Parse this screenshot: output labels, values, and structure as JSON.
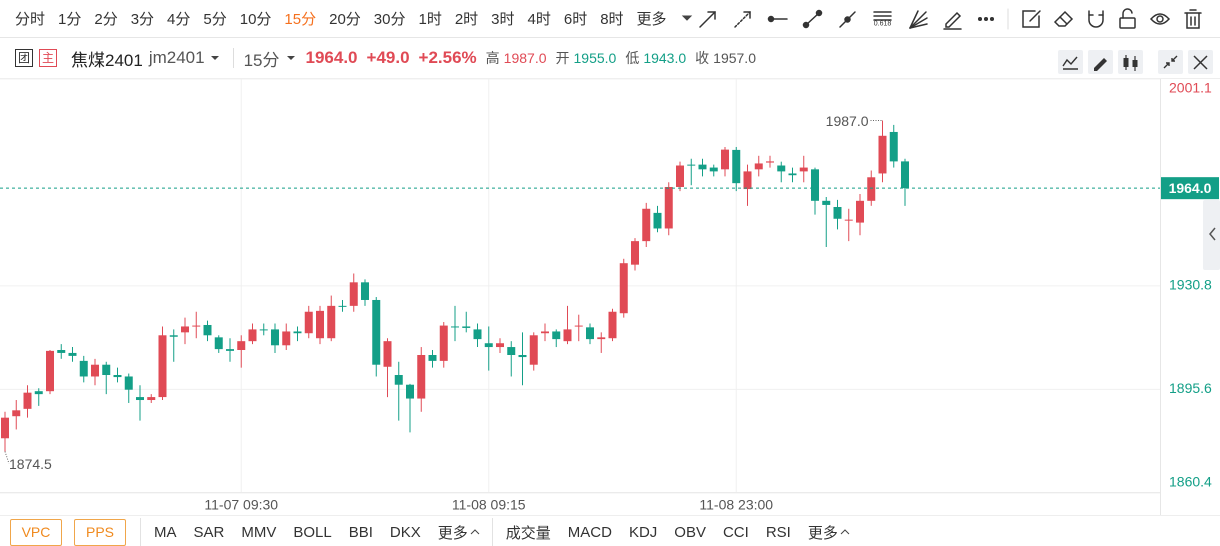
{
  "toolbar": {
    "periods": [
      "分时",
      "1分",
      "2分",
      "3分",
      "4分",
      "5分",
      "10分",
      "15分",
      "20分",
      "30分",
      "1时",
      "2时",
      "3时",
      "4时",
      "6时",
      "8时"
    ],
    "more": "更多",
    "fib_label": "0.618"
  },
  "quote": {
    "badges": [
      "团",
      "主"
    ],
    "name": "焦煤2401",
    "code": "jm2401",
    "period": "15分",
    "price": "1964.0",
    "change": "+49.0",
    "change_pct": "+2.56%",
    "high_label": "高",
    "high": "1987.0",
    "open_label": "开",
    "open": "1955.0",
    "low_label": "低",
    "low": "1943.0",
    "close_label": "收",
    "close": "1957.0"
  },
  "chart_data": {
    "type": "candlestick",
    "categories": [
      null,
      null,
      null,
      null,
      null,
      null,
      null,
      null,
      null,
      null,
      null,
      null,
      null,
      null,
      null,
      null,
      null,
      null,
      null,
      null,
      null,
      "11-07 09:30",
      null,
      null,
      null,
      null,
      null,
      null,
      null,
      null,
      null,
      null,
      null,
      null,
      null,
      null,
      null,
      null,
      null,
      null,
      null,
      null,
      null,
      "11-08 09:15",
      null,
      null,
      null,
      null,
      null,
      null,
      null,
      null,
      null,
      null,
      null,
      null,
      null,
      null,
      null,
      null,
      null,
      null,
      null,
      null,
      null,
      "11-08 23:00",
      null,
      null,
      null,
      null,
      null,
      null,
      null,
      null,
      null,
      null,
      null,
      null,
      null,
      null,
      null
    ],
    "open": [
      1879,
      1886.5,
      1889,
      1895,
      1895,
      1909,
      1908,
      1905.3,
      1900,
      1904,
      1900.5,
      1900,
      1893,
      1892,
      1893,
      1914,
      1915,
      1917,
      1917.5,
      1913.3,
      1909.3,
      1909,
      1912,
      1916,
      1916,
      1910.6,
      1915.3,
      1914.7,
      1913,
      1913,
      1924,
      1924,
      1932,
      1926,
      1903.3,
      1900.5,
      1897.2,
      1892.5,
      1907.3,
      1905.3,
      1917,
      1917,
      1916,
      1911.3,
      1910,
      1910,
      1907.3,
      1904,
      1914.7,
      1915.3,
      1912,
      1917,
      1916.7,
      1912.7,
      1913,
      1921.5,
      1938,
      1946,
      1955.6,
      1950.3,
      1964.4,
      1972,
      1972,
      1971,
      1970.4,
      1977,
      1963.7,
      1970.4,
      1972.7,
      1971.7,
      1969,
      1969.7,
      1970.4,
      1959.7,
      1957.6,
      1953,
      1952.3,
      1959.7,
      1969,
      1983.1,
      1973.1
    ],
    "high": [
      1888,
      1892,
      1897,
      1896,
      1909,
      1911,
      1910,
      1907,
      1906,
      1905,
      1903,
      1901,
      1897,
      1894,
      1917,
      1916,
      1920,
      1922,
      1919,
      1914,
      1913,
      1914,
      1918,
      1918,
      1918,
      1918,
      1917,
      1924,
      1924,
      1927.5,
      1926,
      1935,
      1933,
      1927,
      1913,
      1905,
      1897.5,
      1910,
      1909,
      1918.5,
      1924,
      1922,
      1918,
      1917,
      1913,
      1912,
      1915,
      1915,
      1918,
      1916,
      1924,
      1921,
      1918,
      1915,
      1923,
      1940,
      1947,
      1959,
      1958,
      1966,
      1973,
      1974,
      1974,
      1972,
      1978,
      1978,
      1972,
      1975,
      1975,
      1973,
      1971,
      1975,
      1971,
      1961,
      1960,
      1957,
      1962,
      1970,
      1987.0,
      1985.5,
      1974
    ],
    "low": [
      1874.5,
      1882,
      1886,
      1890,
      1894,
      1906,
      1905,
      1898,
      1897,
      1894,
      1898,
      1891,
      1885,
      1891,
      1892,
      1905,
      1911,
      1913,
      1912,
      1908,
      1905,
      1903,
      1911,
      1914,
      1908,
      1909,
      1912,
      1913,
      1911,
      1912,
      1922,
      1922,
      1924,
      1900,
      1893,
      1885,
      1881,
      1888,
      1903,
      1903,
      1912,
      1915,
      1910,
      1902,
      1908,
      1900,
      1897,
      1902,
      1912,
      1910,
      1911,
      1912,
      1911,
      1908,
      1912,
      1920,
      1936,
      1944,
      1949,
      1948,
      1963,
      1965,
      1968,
      1968,
      1968,
      1963,
      1958,
      1968,
      1971,
      1966,
      1966,
      1966,
      1955,
      1944,
      1950,
      1946,
      1948,
      1958,
      1966,
      1971,
      1958
    ],
    "close": [
      1886,
      1888.5,
      1894.5,
      1894,
      1908.7,
      1908,
      1907,
      1900,
      1904,
      1900.5,
      1899.8,
      1895.5,
      1892,
      1893,
      1914,
      1913.5,
      1917,
      1917.3,
      1914,
      1909.3,
      1908.7,
      1912,
      1916,
      1915.8,
      1910.6,
      1915.3,
      1914.7,
      1922,
      1922.3,
      1924,
      1923.8,
      1932,
      1926,
      1904,
      1912,
      1897.2,
      1892.5,
      1907.3,
      1905.3,
      1917.3,
      1916.8,
      1916.5,
      1912.7,
      1910,
      1911.3,
      1907.3,
      1906.6,
      1914,
      1915.3,
      1912.7,
      1916,
      1917.3,
      1912.7,
      1913.3,
      1922,
      1938.5,
      1946,
      1957,
      1950.3,
      1964.4,
      1971.7,
      1971.8,
      1970.4,
      1969.7,
      1977.1,
      1965.7,
      1969.7,
      1972.4,
      1973.1,
      1969.7,
      1968.4,
      1971,
      1959.7,
      1958.3,
      1953.6,
      1953.3,
      1959.7,
      1967.7,
      1981.8,
      1973.1,
      1964.0
    ],
    "up_color": "#e04a55",
    "down_color": "#139f87",
    "ylim": [
      1860.4,
      2001.1
    ],
    "yticks": [
      1860.4,
      1895.6,
      1930.8,
      2001.1
    ],
    "grid": true,
    "last_price": {
      "value": 1964.0,
      "label": "1964.0"
    },
    "extreme_labels": {
      "high": "1987.0",
      "low": "1874.5"
    }
  },
  "indicators": {
    "main_buttons": [
      "VPC",
      "PPS"
    ],
    "main": [
      "MA",
      "SAR",
      "MMV",
      "BOLL",
      "BBI",
      "DKX"
    ],
    "sub": [
      "成交量",
      "MACD",
      "KDJ",
      "OBV",
      "CCI",
      "RSI"
    ],
    "more": "更多"
  }
}
